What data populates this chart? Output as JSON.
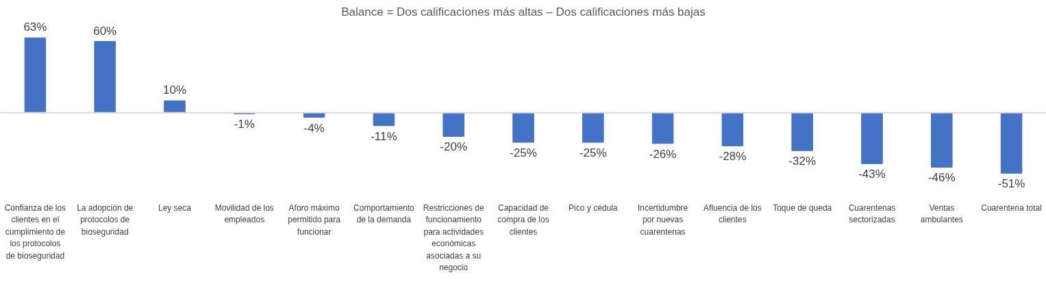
{
  "chart_data": {
    "type": "bar",
    "title": "Balance = Dos calificaciones más altas – Dos calificaciones más bajas",
    "categories": [
      "Confianza de los clientes en el cumplimiento de los protocolos de bioseguridad",
      "La adopción de protocolos de bioseguridad",
      "Ley seca",
      "Movilidad de los empleados",
      "Aforo máximo permitido para funcionar",
      "Comportamiento de la demanda",
      "Restricciones de funcionamiento para actividades económicas asociadas a su negocio",
      "Capacidad de compra de los clientes",
      "Pico y cédula",
      "Incertidumbre por nuevas cuarentenas",
      "Afluencia de los clientes",
      "Toque de queda",
      "Cuarentenas sectorizadas",
      "Ventas ambulantes",
      "Cuarentena total"
    ],
    "values": [
      63,
      60,
      10,
      -1,
      -4,
      -11,
      -20,
      -25,
      -25,
      -26,
      -28,
      -32,
      -43,
      -46,
      -51
    ],
    "value_labels": [
      "63%",
      "60%",
      "10%",
      "-1%",
      "-4%",
      "-11%",
      "-20%",
      "-25%",
      "-25%",
      "-26%",
      "-28%",
      "-32%",
      "-43%",
      "-46%",
      "-51%"
    ],
    "color": "#4472c4"
  }
}
